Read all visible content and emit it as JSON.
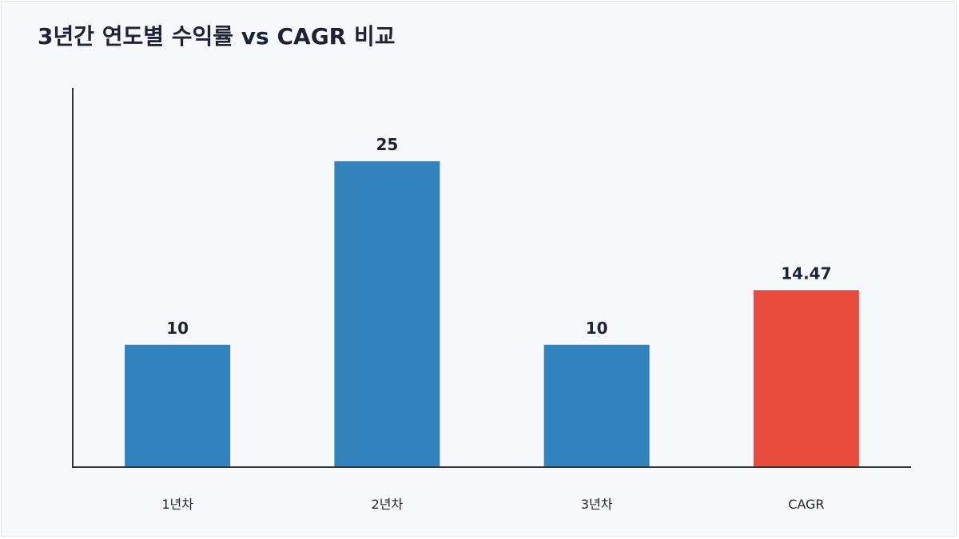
{
  "chart_data": {
    "type": "bar",
    "title": "3년간 연도별 수익률 vs CAGR 비교",
    "xlabel": "",
    "ylabel": "",
    "categories": [
      "1년차",
      "2년차",
      "3년차",
      "CAGR"
    ],
    "values": [
      10,
      25,
      10,
      14.47
    ],
    "value_labels": [
      "10",
      "25",
      "10",
      "14.47"
    ],
    "ylim": [
      0,
      31
    ],
    "grid": false,
    "colors": {
      "annual": "#3182bd",
      "cagr": "#e74c3c",
      "axis": "#333333"
    },
    "bar_colors": [
      "annual",
      "annual",
      "annual",
      "cagr"
    ]
  }
}
